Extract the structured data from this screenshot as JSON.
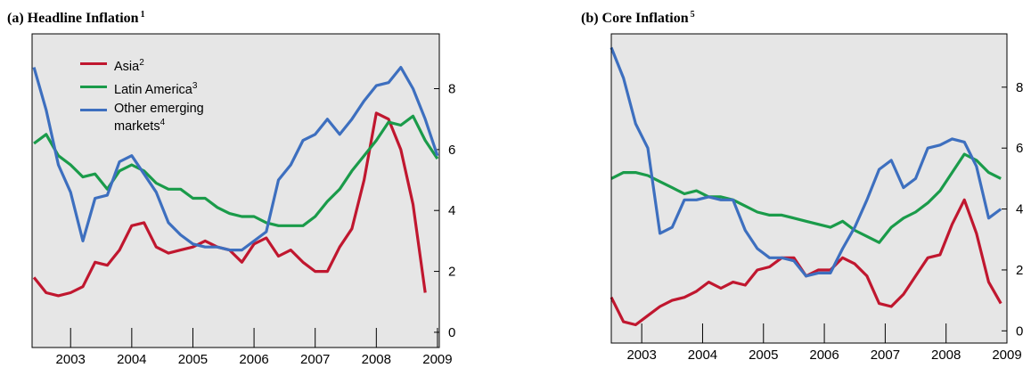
{
  "chart_data": [
    {
      "type": "line",
      "title": "(a) Headline Inflation",
      "title_footnote": "1",
      "x": [
        2002.4,
        2002.6,
        2002.8,
        2003.0,
        2003.2,
        2003.4,
        2003.6,
        2003.8,
        2004.0,
        2004.2,
        2004.4,
        2004.6,
        2004.8,
        2005.0,
        2005.2,
        2005.4,
        2005.6,
        2005.8,
        2006.0,
        2006.2,
        2006.4,
        2006.6,
        2006.8,
        2007.0,
        2007.2,
        2007.4,
        2007.6,
        2007.8,
        2008.0,
        2008.2,
        2008.4,
        2008.6,
        2008.8,
        2009.0
      ],
      "series": [
        {
          "name": "Asia",
          "footnote": "2",
          "color": "#c0172f",
          "values": [
            1.8,
            1.3,
            1.2,
            1.3,
            1.5,
            2.3,
            2.2,
            2.7,
            3.5,
            3.6,
            2.8,
            2.6,
            2.7,
            2.8,
            3.0,
            2.8,
            2.7,
            2.3,
            2.9,
            3.1,
            2.5,
            2.7,
            2.3,
            2.0,
            2.0,
            2.8,
            3.4,
            5.0,
            7.2,
            7.0,
            6.0,
            4.2,
            1.3,
            null
          ]
        },
        {
          "name": "Latin America",
          "footnote": "3",
          "color": "#1a9b4a",
          "values": [
            6.2,
            6.5,
            5.8,
            5.5,
            5.1,
            5.2,
            4.7,
            5.3,
            5.5,
            5.3,
            4.9,
            4.7,
            4.7,
            4.4,
            4.4,
            4.1,
            3.9,
            3.8,
            3.8,
            3.6,
            3.5,
            3.5,
            3.5,
            3.8,
            4.3,
            4.7,
            5.3,
            5.8,
            6.3,
            6.9,
            6.8,
            7.1,
            6.3,
            5.7
          ]
        },
        {
          "name": "Other emerging markets",
          "footnote": "4",
          "color": "#3d6fbf",
          "values": [
            8.7,
            7.3,
            5.5,
            4.6,
            3.0,
            4.4,
            4.5,
            5.6,
            5.8,
            5.2,
            4.6,
            3.6,
            3.2,
            2.9,
            2.8,
            2.8,
            2.7,
            2.7,
            3.0,
            3.3,
            5.0,
            5.5,
            6.3,
            6.5,
            7.0,
            6.5,
            7.0,
            7.6,
            8.1,
            8.2,
            8.7,
            8.0,
            7.0,
            5.8
          ]
        }
      ],
      "xlim": [
        2002.37,
        2009.03
      ],
      "xticks": [
        2003,
        2004,
        2005,
        2006,
        2007,
        2008,
        2009
      ],
      "ylim": [
        -0.5,
        9.8
      ],
      "yticks": [
        0,
        2,
        4,
        6,
        8
      ],
      "legend": "upper left"
    },
    {
      "type": "line",
      "title": "(b) Core Inflation",
      "title_footnote": "5",
      "x": [
        2002.5,
        2002.7,
        2002.9,
        2003.1,
        2003.3,
        2003.5,
        2003.7,
        2003.9,
        2004.1,
        2004.3,
        2004.5,
        2004.7,
        2004.9,
        2005.1,
        2005.3,
        2005.5,
        2005.7,
        2005.9,
        2006.1,
        2006.3,
        2006.5,
        2006.7,
        2006.9,
        2007.1,
        2007.3,
        2007.5,
        2007.7,
        2007.9,
        2008.1,
        2008.3,
        2008.5,
        2008.7,
        2008.9
      ],
      "series": [
        {
          "name": "Asia",
          "color": "#c0172f",
          "values": [
            1.1,
            0.3,
            0.2,
            0.5,
            0.8,
            1.0,
            1.1,
            1.3,
            1.6,
            1.4,
            1.6,
            1.5,
            2.0,
            2.1,
            2.4,
            2.4,
            1.8,
            2.0,
            2.0,
            2.4,
            2.2,
            1.8,
            0.9,
            0.8,
            1.2,
            1.8,
            2.4,
            2.5,
            3.5,
            4.3,
            3.2,
            1.6,
            0.9
          ]
        },
        {
          "name": "Latin America",
          "color": "#1a9b4a",
          "values": [
            5.0,
            5.2,
            5.2,
            5.1,
            4.9,
            4.7,
            4.5,
            4.6,
            4.4,
            4.4,
            4.3,
            4.1,
            3.9,
            3.8,
            3.8,
            3.7,
            3.6,
            3.5,
            3.4,
            3.6,
            3.3,
            3.1,
            2.9,
            3.4,
            3.7,
            3.9,
            4.2,
            4.6,
            5.2,
            5.8,
            5.6,
            5.2,
            5.0
          ]
        },
        {
          "name": "Other emerging markets",
          "color": "#3d6fbf",
          "values": [
            9.3,
            8.3,
            6.8,
            6.0,
            3.2,
            3.4,
            4.3,
            4.3,
            4.4,
            4.3,
            4.3,
            3.3,
            2.7,
            2.4,
            2.4,
            2.3,
            1.8,
            1.9,
            1.9,
            2.7,
            3.4,
            4.3,
            5.3,
            5.6,
            4.7,
            5.0,
            6.0,
            6.1,
            6.3,
            6.2,
            5.4,
            3.7,
            4.0
          ]
        }
      ],
      "xlim": [
        2002.5,
        2009.0
      ],
      "xticks": [
        2003,
        2004,
        2005,
        2006,
        2007,
        2008,
        2009
      ],
      "ylim": [
        -0.4,
        9.75
      ],
      "yticks": [
        0,
        2,
        4,
        6,
        8
      ]
    }
  ]
}
